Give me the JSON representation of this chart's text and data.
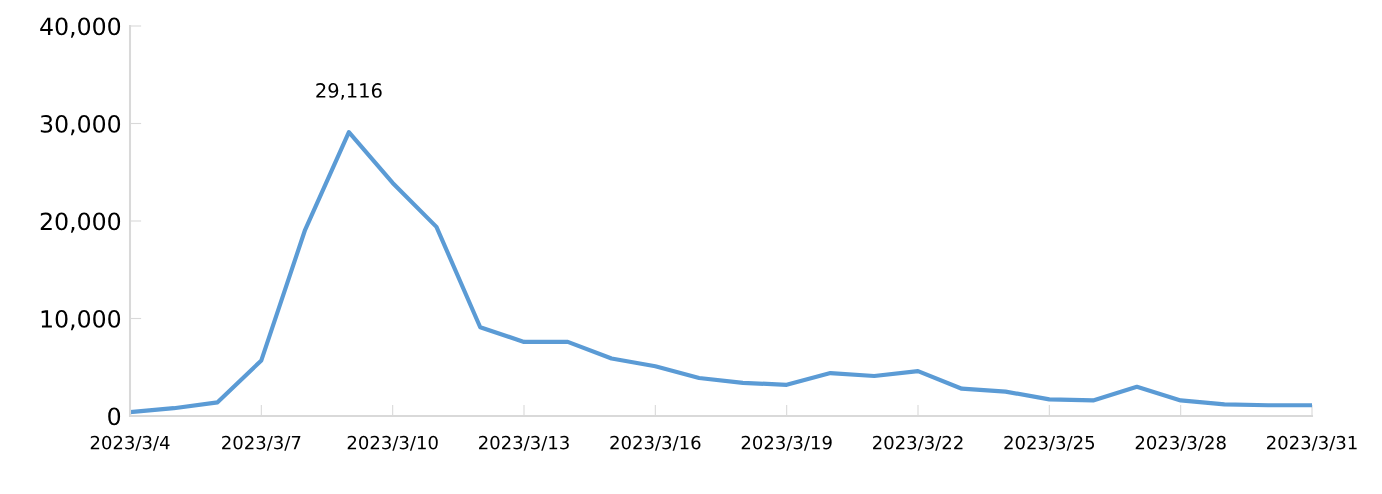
{
  "chart_data": {
    "type": "line",
    "x": [
      "2023-03-04",
      "2023-03-05",
      "2023-03-06",
      "2023-03-07",
      "2023-03-08",
      "2023-03-09",
      "2023-03-10",
      "2023-03-11",
      "2023-03-12",
      "2023-03-13",
      "2023-03-14",
      "2023-03-15",
      "2023-03-16",
      "2023-03-17",
      "2023-03-18",
      "2023-03-19",
      "2023-03-20",
      "2023-03-21",
      "2023-03-22",
      "2023-03-23",
      "2023-03-24",
      "2023-03-25",
      "2023-03-26",
      "2023-03-27",
      "2023-03-28",
      "2023-03-29",
      "2023-03-30",
      "2023-03-31"
    ],
    "series": [
      {
        "color": "#5b9bd5",
        "values": [
          400,
          800,
          1400,
          5700,
          19100,
          29116,
          23900,
          19400,
          9100,
          7600,
          7600,
          5900,
          5100,
          3900,
          3400,
          3200,
          4400,
          4100,
          4600,
          2800,
          2500,
          1700,
          1600,
          3000,
          1600,
          1200,
          1100,
          1100
        ],
        "value_labels": [
          null,
          null,
          null,
          null,
          null,
          "29,116",
          null,
          null,
          null,
          null,
          null,
          null,
          null,
          null,
          null,
          null,
          null,
          null,
          null,
          null,
          null,
          null,
          null,
          null,
          null,
          null,
          null,
          null
        ]
      }
    ],
    "xlim": [
      "2023-03-04",
      "2023-03-31"
    ],
    "xticks": [
      {
        "value": "2023-03-04",
        "label": "2023/3/4"
      },
      {
        "value": "2023-03-07",
        "label": "2023/3/7"
      },
      {
        "value": "2023-03-10",
        "label": "2023/3/10"
      },
      {
        "value": "2023-03-13",
        "label": "2023/3/13"
      },
      {
        "value": "2023-03-16",
        "label": "2023/3/16"
      },
      {
        "value": "2023-03-19",
        "label": "2023/3/19"
      },
      {
        "value": "2023-03-22",
        "label": "2023/3/22"
      },
      {
        "value": "2023-03-25",
        "label": "2023/3/25"
      },
      {
        "value": "2023-03-28",
        "label": "2023/3/28"
      },
      {
        "value": "2023-03-31",
        "label": "2023/3/31"
      }
    ],
    "ylim": [
      0,
      40000
    ],
    "yticks": [
      {
        "value": 0,
        "label": "0"
      },
      {
        "value": 10000,
        "label": "10,000"
      },
      {
        "value": 20000,
        "label": "20,000"
      },
      {
        "value": 30000,
        "label": "30,000"
      },
      {
        "value": 40000,
        "label": "40,000"
      }
    ],
    "grid": false,
    "legend": false,
    "marker": "none",
    "line_style": "solid"
  }
}
